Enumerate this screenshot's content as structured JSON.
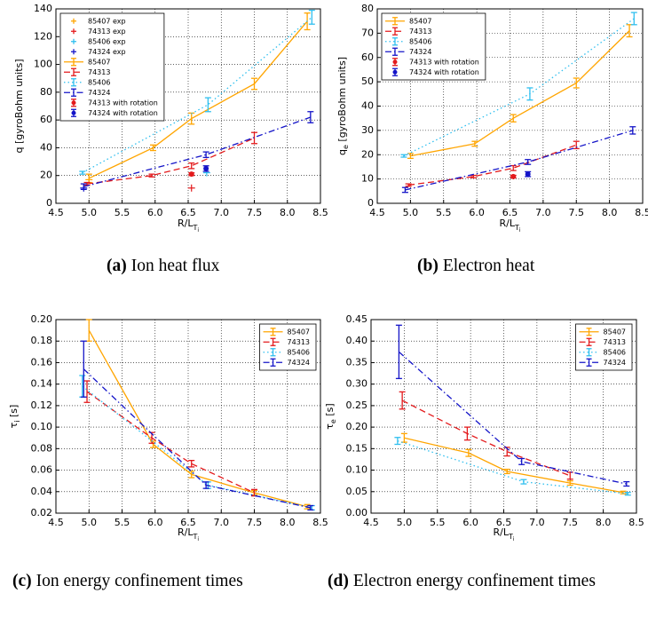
{
  "chart_data": [
    {
      "type": "errorbar",
      "caption_tag": "(a)",
      "caption": "Ion heat flux",
      "xlabel": {
        "main": "R/L",
        "sub": "T",
        "subsub": "i"
      },
      "ylabel": {
        "symbol": "q",
        "rest": " [gyroBohm units]"
      },
      "xlim": [
        4.5,
        8.5
      ],
      "xticks": [
        4.5,
        {
          "value": 5,
          "label": "5.0"
        },
        5.5,
        {
          "value": 6,
          "label": "6.0"
        },
        6.5,
        {
          "value": 7,
          "label": "7.0"
        },
        7.5,
        {
          "value": 8,
          "label": "8.0"
        },
        8.5
      ],
      "ylim": [
        0,
        140
      ],
      "yticks": [
        0,
        20,
        40,
        60,
        80,
        100,
        120,
        140
      ],
      "grid": true,
      "legend": "upper left",
      "series": [
        {
          "name": "85407 exp",
          "color": "#ffa500",
          "style": "plus",
          "x": [
            5.0
          ],
          "values": [
            17
          ]
        },
        {
          "name": "74313 exp",
          "color": "#e31a1c",
          "style": "plus",
          "x": [
            6.55
          ],
          "values": [
            11
          ]
        },
        {
          "name": "85406 exp",
          "color": "#2fbfef",
          "style": "plus",
          "x": [
            6.78
          ],
          "values": [
            22
          ]
        },
        {
          "name": "74324 exp",
          "color": "#1414c8",
          "style": "plus",
          "x": [
            4.92
          ],
          "values": [
            11
          ]
        },
        {
          "name": "85407",
          "color": "#ffa500",
          "style": "line",
          "linestyle": "solid",
          "x": [
            5.0,
            5.97,
            6.55,
            7.5,
            8.3
          ],
          "values": [
            18,
            40,
            61,
            86,
            131
          ],
          "errors": [
            3,
            2,
            4,
            4,
            6
          ]
        },
        {
          "name": "74313",
          "color": "#e31a1c",
          "style": "line",
          "linestyle": "dashed",
          "x": [
            4.97,
            5.95,
            6.55,
            7.5
          ],
          "values": [
            14,
            20,
            27,
            47
          ],
          "errors": [
            1,
            1,
            2,
            4
          ]
        },
        {
          "name": "85406",
          "color": "#2fbfef",
          "style": "line",
          "linestyle": "dotted",
          "x": [
            4.9,
            6.8,
            8.37
          ],
          "values": [
            22,
            71,
            134
          ],
          "errors": [
            1,
            5,
            5
          ]
        },
        {
          "name": "74324",
          "color": "#1414c8",
          "style": "line",
          "linestyle": "dashdot",
          "x": [
            4.92,
            6.77,
            8.35
          ],
          "values": [
            12,
            35,
            62
          ],
          "errors": [
            2,
            2,
            4
          ]
        },
        {
          "name": "74313 with rotation",
          "color": "#e31a1c",
          "style": "dot",
          "x": [
            6.55
          ],
          "values": [
            21
          ],
          "errors": [
            1
          ]
        },
        {
          "name": "74324 with rotation",
          "color": "#1414c8",
          "style": "dot",
          "x": [
            6.77
          ],
          "values": [
            25
          ],
          "errors": [
            2
          ]
        }
      ]
    },
    {
      "type": "errorbar",
      "caption_tag": "(b)",
      "caption": "Electron heat",
      "xlabel": {
        "main": "R/L",
        "sub": "T",
        "subsub": "i"
      },
      "ylabel": {
        "symbol": "q",
        "sub": "e",
        "rest": " [gyroBohm units]"
      },
      "xlim": [
        4.5,
        8.5
      ],
      "xticks": [
        4.5,
        {
          "value": 5,
          "label": "5.0"
        },
        5.5,
        {
          "value": 6,
          "label": "6.0"
        },
        6.5,
        {
          "value": 7,
          "label": "7.0"
        },
        7.5,
        {
          "value": 8,
          "label": "8.0"
        },
        8.5
      ],
      "ylim": [
        0,
        80
      ],
      "yticks": [
        0,
        10,
        20,
        30,
        40,
        50,
        60,
        70,
        80
      ],
      "grid": true,
      "legend": "upper left",
      "series": [
        {
          "name": "85407",
          "color": "#ffa500",
          "style": "line",
          "linestyle": "solid",
          "x": [
            5.0,
            5.97,
            6.55,
            7.5,
            8.3
          ],
          "values": [
            19.5,
            24.5,
            35,
            49.5,
            71
          ],
          "errors": [
            1,
            1,
            1.5,
            2,
            2.5
          ]
        },
        {
          "name": "74313",
          "color": "#e31a1c",
          "style": "line",
          "linestyle": "dashed",
          "x": [
            4.97,
            5.95,
            6.55,
            7.5
          ],
          "values": [
            7.5,
            11,
            14.5,
            24
          ],
          "errors": [
            0.5,
            0.5,
            1,
            1.5
          ]
        },
        {
          "name": "85406",
          "color": "#2fbfef",
          "style": "line",
          "linestyle": "dotted",
          "x": [
            4.9,
            6.8,
            8.37
          ],
          "values": [
            19.5,
            45,
            76
          ],
          "errors": [
            0.5,
            2.5,
            2.5
          ]
        },
        {
          "name": "74324",
          "color": "#1414c8",
          "style": "line",
          "linestyle": "dashdot",
          "x": [
            4.92,
            6.77,
            8.35
          ],
          "values": [
            5.5,
            17,
            30
          ],
          "errors": [
            1,
            1,
            1.5
          ]
        },
        {
          "name": "74313 with rotation",
          "color": "#e31a1c",
          "style": "dot",
          "x": [
            6.55
          ],
          "values": [
            11
          ],
          "errors": [
            0.5
          ]
        },
        {
          "name": "74324 with rotation",
          "color": "#1414c8",
          "style": "dot",
          "x": [
            6.77
          ],
          "values": [
            12
          ],
          "errors": [
            1
          ]
        }
      ]
    },
    {
      "type": "errorbar",
      "caption_tag": "(c)",
      "caption": "Ion energy confinement times",
      "xlabel": {
        "main": "R/L",
        "sub": "T",
        "subsub": "i"
      },
      "ylabel": {
        "symbol": "τ",
        "sub": "i",
        "rest": " [s]"
      },
      "xlim": [
        4.5,
        8.5
      ],
      "xticks": [
        4.5,
        {
          "value": 5,
          "label": "5.0"
        },
        5.5,
        {
          "value": 6,
          "label": "6.0"
        },
        6.5,
        {
          "value": 7,
          "label": "7.0"
        },
        7.5,
        {
          "value": 8,
          "label": "8.0"
        },
        8.5
      ],
      "ylim": [
        0.02,
        0.2
      ],
      "yticks": [
        0.02,
        0.04,
        0.06,
        0.08,
        {
          "value": 0.1,
          "label": "0.10"
        },
        0.12,
        0.14,
        0.16,
        0.18,
        {
          "value": 0.2,
          "label": "0.20"
        }
      ],
      "grid": true,
      "legend": "upper right",
      "series": [
        {
          "name": "85407",
          "color": "#ffa500",
          "style": "line",
          "linestyle": "solid",
          "x": [
            5.0,
            5.97,
            6.55,
            7.5,
            8.3
          ],
          "values": [
            0.19,
            0.084,
            0.056,
            0.039,
            0.026
          ],
          "errors": [
            0.01,
            0.003,
            0.003,
            0.002,
            0.002
          ]
        },
        {
          "name": "74313",
          "color": "#e31a1c",
          "style": "line",
          "linestyle": "dashed",
          "x": [
            4.97,
            5.95,
            6.55,
            7.5
          ],
          "values": [
            0.133,
            0.09,
            0.066,
            0.039
          ],
          "errors": [
            0.01,
            0.005,
            0.003,
            0.003
          ]
        },
        {
          "name": "85406",
          "color": "#2fbfef",
          "style": "line",
          "linestyle": "dotted",
          "x": [
            4.9,
            6.8,
            8.37
          ],
          "values": [
            0.138,
            0.046,
            0.025
          ],
          "errors": [
            0.01,
            0.003,
            0.002
          ]
        },
        {
          "name": "74324",
          "color": "#1414c8",
          "style": "line",
          "linestyle": "dashdot",
          "x": [
            4.92,
            6.77,
            8.35
          ],
          "values": [
            0.154,
            0.046,
            0.025
          ],
          "errors": [
            0.026,
            0.003,
            0.002
          ]
        }
      ]
    },
    {
      "type": "errorbar",
      "caption_tag": "(d)",
      "caption": "Electron energy confinement times",
      "xlabel": {
        "main": "R/L",
        "sub": "T",
        "subsub": "i"
      },
      "ylabel": {
        "symbol": "τ",
        "sub": "e",
        "rest": " [s]"
      },
      "xlim": [
        4.5,
        8.5
      ],
      "xticks": [
        4.5,
        {
          "value": 5,
          "label": "5.0"
        },
        5.5,
        {
          "value": 6,
          "label": "6.0"
        },
        6.5,
        {
          "value": 7,
          "label": "7.0"
        },
        7.5,
        {
          "value": 8,
          "label": "8.0"
        },
        8.5
      ],
      "ylim": [
        0,
        0.45
      ],
      "yticks": [
        {
          "value": 0,
          "label": "0.00"
        },
        0.05,
        {
          "value": 0.1,
          "label": "0.10"
        },
        0.15,
        {
          "value": 0.2,
          "label": "0.20"
        },
        0.25,
        {
          "value": 0.3,
          "label": "0.30"
        },
        0.35,
        {
          "value": 0.4,
          "label": "0.40"
        },
        0.45
      ],
      "grid": true,
      "legend": "upper right",
      "series": [
        {
          "name": "85407",
          "color": "#ffa500",
          "style": "line",
          "linestyle": "solid",
          "x": [
            5.0,
            5.97,
            6.55,
            7.5,
            8.3
          ],
          "values": [
            0.175,
            0.14,
            0.097,
            0.07,
            0.048
          ],
          "errors": [
            0.01,
            0.008,
            0.005,
            0.005,
            0.003
          ]
        },
        {
          "name": "74313",
          "color": "#e31a1c",
          "style": "line",
          "linestyle": "dashed",
          "x": [
            4.97,
            5.95,
            6.55,
            7.5
          ],
          "values": [
            0.262,
            0.185,
            0.143,
            0.087
          ],
          "errors": [
            0.02,
            0.015,
            0.01,
            0.008
          ]
        },
        {
          "name": "85406",
          "color": "#2fbfef",
          "style": "line",
          "linestyle": "dotted",
          "x": [
            4.9,
            6.8,
            8.37
          ],
          "values": [
            0.168,
            0.073,
            0.045
          ],
          "errors": [
            0.008,
            0.005,
            0.003
          ]
        },
        {
          "name": "74324",
          "color": "#1414c8",
          "style": "line",
          "linestyle": "dashdot",
          "x": [
            4.92,
            6.77,
            8.35
          ],
          "values": [
            0.375,
            0.12,
            0.068
          ],
          "errors": [
            0.062,
            0.007,
            0.005
          ]
        }
      ]
    }
  ]
}
